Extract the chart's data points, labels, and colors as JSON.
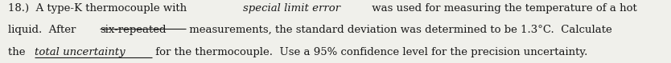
{
  "figsize": [
    8.34,
    0.79
  ],
  "dpi": 100,
  "background_color": "#f0f0eb",
  "text_color": "#1a1a1a",
  "font_size": 9.5,
  "lines": [
    {
      "segments": [
        {
          "text": "18.)  A type-K thermocouple with ",
          "style": "normal"
        },
        {
          "text": "special limit error",
          "style": "italic"
        },
        {
          "text": " was used for measuring the temperature of a hot",
          "style": "normal"
        }
      ]
    },
    {
      "segments": [
        {
          "text": "liquid.  After ",
          "style": "normal"
        },
        {
          "text": "six-repeated",
          "style": "strikethrough"
        },
        {
          "text": " measurements, the standard deviation was determined to be 1.3°C.  Calculate",
          "style": "normal"
        }
      ]
    },
    {
      "segments": [
        {
          "text": "the ",
          "style": "normal"
        },
        {
          "text": "total uncertainty",
          "style": "italic_underline"
        },
        {
          "text": " for the thermocouple.  Use a 95% confidence level for the precision uncertainty.",
          "style": "normal"
        }
      ]
    }
  ]
}
